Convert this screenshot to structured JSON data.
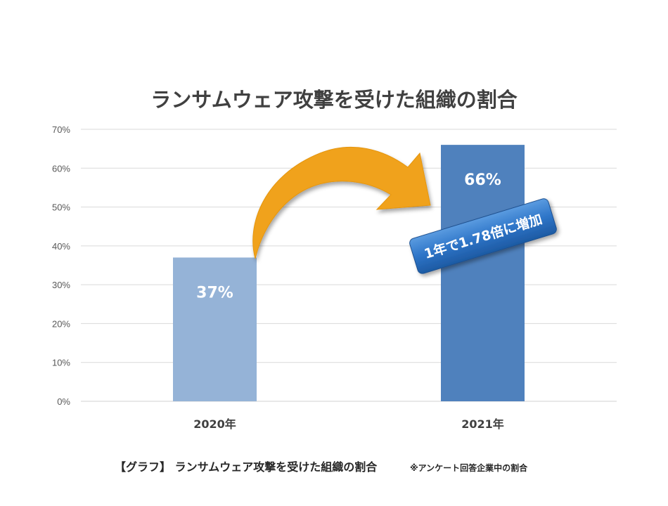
{
  "chart_data": {
    "type": "bar",
    "title": "ランサムウェア攻撃を受けた組織の割合",
    "categories": [
      "2020年",
      "2021年"
    ],
    "values": [
      37,
      66
    ],
    "data_labels": [
      "37%",
      "66%"
    ],
    "ylim": [
      0,
      70
    ],
    "yticks": [
      "0%",
      "10%",
      "20%",
      "30%",
      "40%",
      "50%",
      "60%",
      "70%"
    ],
    "grid": true,
    "bar_colors": [
      "#95b3d7",
      "#4f81bd"
    ],
    "annotation": {
      "text": "1年で1.78倍に増加",
      "arrow_color": "#f0a21a",
      "badge_color": "#2e75c8"
    }
  },
  "caption": {
    "main": "【グラフ】 ランサムウェア攻撃を受けた組織の割合",
    "note": "※アンケート回答企業中の割合"
  }
}
